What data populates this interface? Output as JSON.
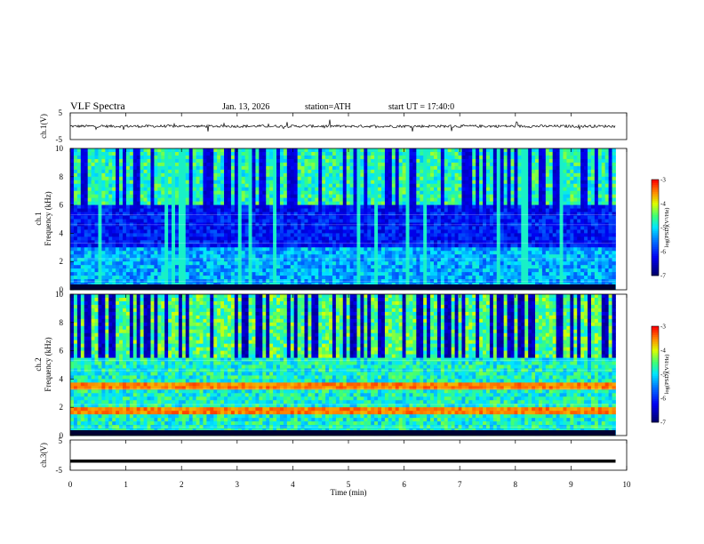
{
  "header": {
    "title": "VLF  Spectra",
    "date": "Jan. 13, 2026",
    "station": "station=ATH",
    "start": "start  UT  =   17:40:0"
  },
  "chart_data": [
    {
      "type": "line",
      "panel": "ch1-waveform",
      "ylabel": "ch.1(V)",
      "ylim": [
        -5,
        5
      ],
      "yticks": [
        "5",
        "-5"
      ],
      "x_range": [
        0,
        9.8
      ],
      "baseline": 0,
      "description_of_signal": "noisy trace near 0 V with occasional spikes"
    },
    {
      "type": "heatmap",
      "panel": "ch1-spectrogram",
      "ylabel_line1": "ch.1",
      "ylabel_line2": "Frequency  (kHz)",
      "ylim": [
        0,
        10
      ],
      "yticks": [
        "0",
        "2",
        "4",
        "6",
        "8",
        "10"
      ],
      "x_range": [
        0,
        9.8
      ],
      "colorbar": {
        "label": "log(PSD)(V²/Hz)",
        "range": [
          -7,
          -3
        ],
        "ticks": [
          "-3",
          "-4",
          "-5",
          "-6",
          "-7"
        ]
      }
    },
    {
      "type": "heatmap",
      "panel": "ch2-spectrogram",
      "ylabel_line1": "ch.2",
      "ylabel_line2": "Frequency  (kHz)",
      "ylim": [
        0,
        10
      ],
      "yticks": [
        "0",
        "2",
        "4",
        "6",
        "8",
        "10"
      ],
      "x_range": [
        0,
        9.8
      ],
      "colorbar": {
        "label": "log(PSD)(V²/Hz)",
        "range": [
          -7,
          -3
        ],
        "ticks": [
          "-3",
          "-4",
          "-5",
          "-6",
          "-7"
        ]
      }
    },
    {
      "type": "line",
      "panel": "ch3-waveform",
      "ylabel": "ch.3(V)",
      "ylim": [
        -5,
        5
      ],
      "yticks": [
        "5",
        "-5"
      ],
      "x_range": [
        0,
        9.8
      ],
      "baseline": -2
    }
  ],
  "xaxis": {
    "label": "Time  (min)",
    "ticks": [
      "0",
      "1",
      "2",
      "3",
      "4",
      "5",
      "6",
      "7",
      "8",
      "9",
      "10"
    ],
    "xlim": [
      0,
      10
    ]
  },
  "colors": {
    "low": "#00007f",
    "mid": "#00e5ff",
    "high": "#ff2000"
  }
}
